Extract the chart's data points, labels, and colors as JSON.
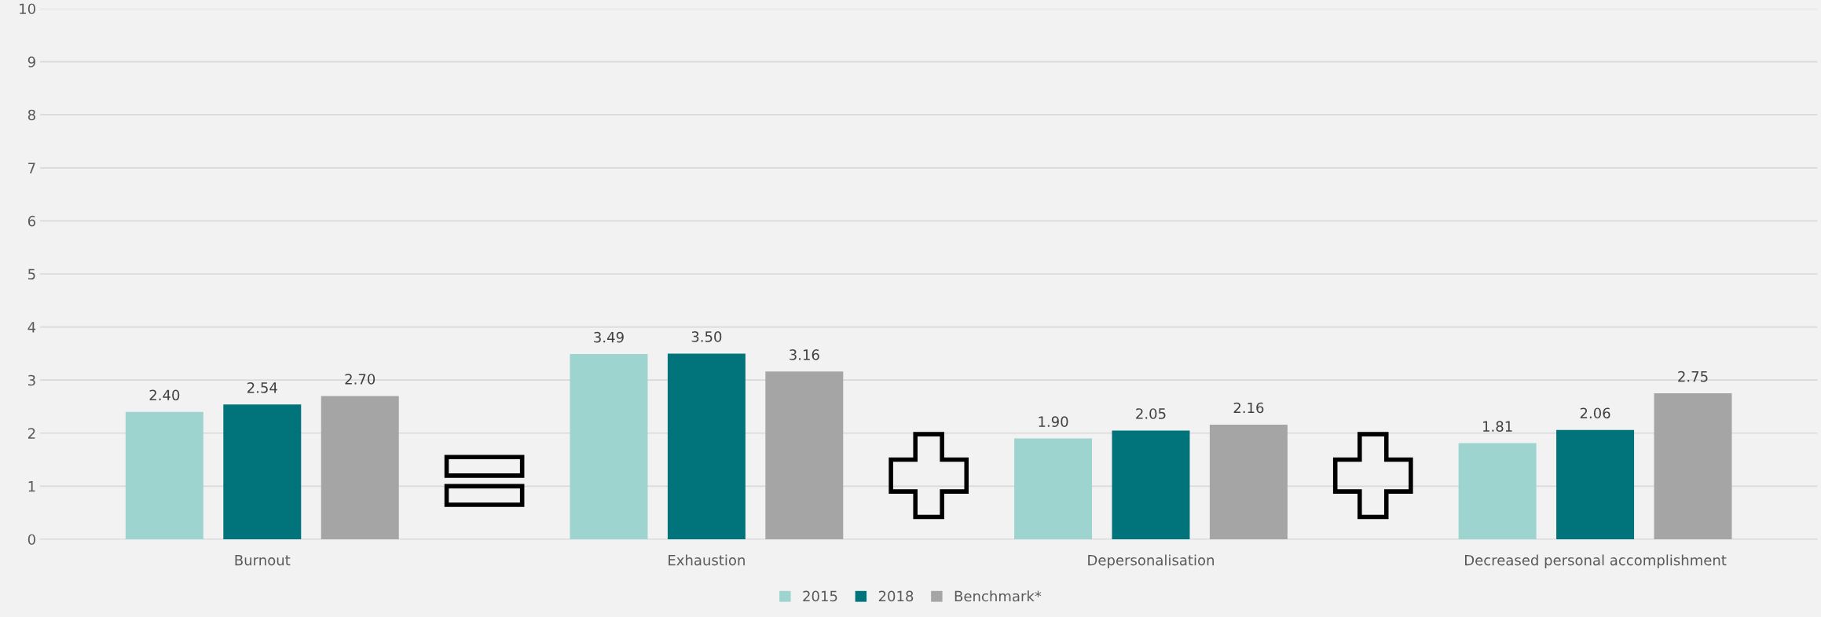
{
  "chart_data": {
    "type": "bar",
    "categories": [
      "Burnout",
      "Exhaustion",
      "Depersonalisation",
      "Decreased personal accomplishment"
    ],
    "series": [
      {
        "name": "2015",
        "color": "#9dd4cf",
        "values": [
          2.4,
          3.49,
          1.9,
          1.81
        ],
        "value_labels": [
          "2.40",
          "3.49",
          "1.90",
          "1.81"
        ]
      },
      {
        "name": "2018",
        "color": "#00747a",
        "values": [
          2.54,
          3.5,
          2.05,
          2.06
        ],
        "value_labels": [
          "2.54",
          "3.50",
          "2.05",
          "2.06"
        ]
      },
      {
        "name": "Benchmark*",
        "color": "#a5a5a5",
        "values": [
          2.7,
          3.16,
          2.16,
          2.75
        ],
        "value_labels": [
          "2.70",
          "3.16",
          "2.16",
          "2.75"
        ]
      }
    ],
    "ylim": [
      0,
      10
    ],
    "yticks": [
      0,
      1,
      2,
      3,
      4,
      5,
      6,
      7,
      8,
      9,
      10
    ],
    "grid": "y",
    "legend": "bottom"
  }
}
